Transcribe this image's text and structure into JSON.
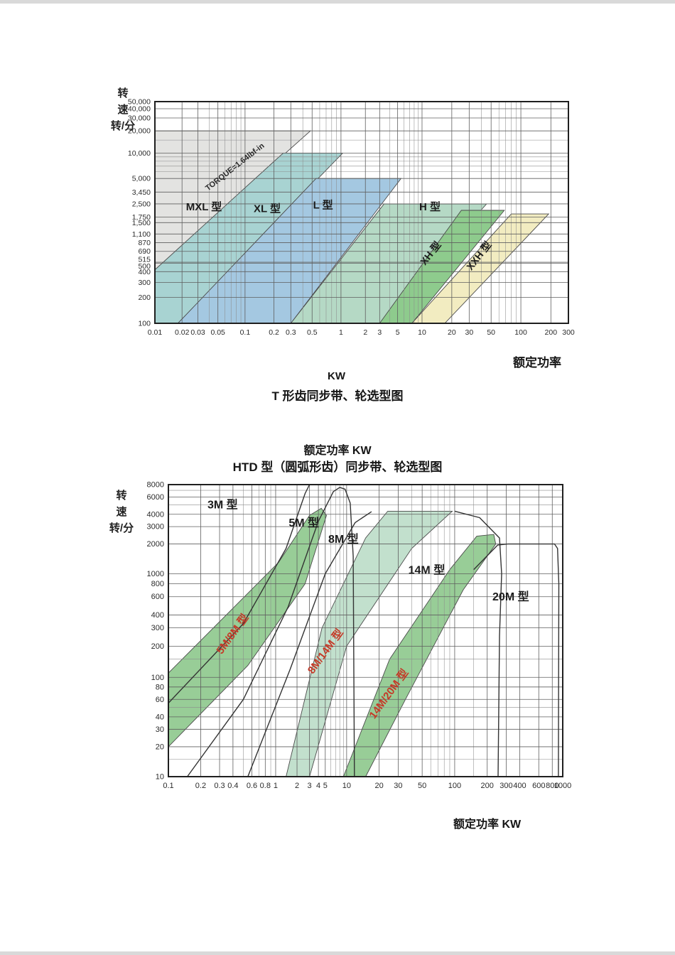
{
  "page": {
    "top_chart": {
      "y_axis_title_lines": [
        "转",
        "速",
        "转/分"
      ]
    },
    "between": {
      "x_axis_label": "额定功率",
      "x_axis_unit": "KW",
      "title": "T 形齿同步带、轮选型图"
    },
    "bottom_header": {
      "power_label": "额定功率 KW",
      "title": "HTD 型（圆弧形齿）同步带、轮选型图"
    },
    "bottom_chart": {
      "y_axis_title_lines": [
        "转",
        "速",
        "转/分"
      ],
      "x_axis_label": "额定功率 KW"
    }
  },
  "chart_data": [
    {
      "id": "t-belt-selection",
      "type": "area",
      "title": "T 形齿同步带、轮选型图",
      "xlabel": "额定功率 KW",
      "ylabel": "转速 转/分",
      "x_range": [
        0.01,
        300
      ],
      "y_range": [
        100,
        50000
      ],
      "grid": true,
      "x_ticks": [
        {
          "label": "0.01",
          "v": 0.01
        },
        {
          "label": "0.02",
          "v": 0.02
        },
        {
          "label": "0.03",
          "v": 0.03
        },
        {
          "label": "0.05",
          "v": 0.05
        },
        {
          "label": "0.1",
          "v": 0.1
        },
        {
          "label": "0.2",
          "v": 0.2
        },
        {
          "label": "0.3",
          "v": 0.3
        },
        {
          "label": "0.5",
          "v": 0.5
        },
        {
          "label": "1",
          "v": 1
        },
        {
          "label": "2",
          "v": 2
        },
        {
          "label": "3",
          "v": 3
        },
        {
          "label": "5",
          "v": 5
        },
        {
          "label": "10",
          "v": 10
        },
        {
          "label": "20",
          "v": 20
        },
        {
          "label": "30",
          "v": 30
        },
        {
          "label": "50",
          "v": 50
        },
        {
          "label": "100",
          "v": 100
        },
        {
          "label": "200",
          "v": 200
        },
        {
          "label": "300",
          "v": 300
        }
      ],
      "y_ticks": [
        {
          "label": "50,000",
          "v": 50000
        },
        {
          "label": "40,000",
          "v": 40000
        },
        {
          "label": "30,000",
          "v": 30000
        },
        {
          "label": "20,000",
          "v": 20000
        },
        {
          "label": "10,000",
          "v": 10000
        },
        {
          "label": "5,000",
          "v": 5000
        },
        {
          "label": "3,450",
          "v": 3450
        },
        {
          "label": "2,500",
          "v": 2500
        },
        {
          "label": "1,750",
          "v": 1750
        },
        {
          "label": "1,500",
          "v": 1500
        },
        {
          "label": "1,100",
          "v": 1100
        },
        {
          "label": "870",
          "v": 870
        },
        {
          "label": "690",
          "v": 690
        },
        {
          "label": "515",
          "v": 515,
          "dy": -4
        },
        {
          "label": "500",
          "v": 500,
          "dy": 4
        },
        {
          "label": "400",
          "v": 400
        },
        {
          "label": "300",
          "v": 300
        },
        {
          "label": "200",
          "v": 200
        },
        {
          "label": "100",
          "v": 100
        }
      ],
      "x_minor": [
        0.04,
        0.06,
        0.07,
        0.08,
        0.09,
        0.4,
        0.6,
        0.7,
        0.8,
        0.9,
        4,
        6,
        7,
        8,
        9,
        40,
        60,
        70,
        80,
        90
      ],
      "y_minor": [
        6000,
        7000,
        8000,
        9000,
        15000
      ],
      "x_anchors": [
        [
          0.01,
          0
        ],
        [
          0.1,
          0.218
        ],
        [
          1,
          0.45
        ],
        [
          10,
          0.646
        ],
        [
          100,
          0.885
        ],
        [
          300,
          1
        ]
      ],
      "y_anchors": [
        [
          50000,
          0
        ],
        [
          10000,
          0.232
        ],
        [
          1000,
          0.613
        ],
        [
          100,
          1
        ]
      ],
      "bands": [
        {
          "name": "MXL",
          "color": "#e3e3e1",
          "points": [
            [
              0.01,
              420
            ],
            [
              0.48,
              20000
            ],
            [
              0.01,
              20000
            ]
          ]
        },
        {
          "name": "XL",
          "color": "#a8d3d2",
          "points": [
            [
              0.01,
              420
            ],
            [
              0.25,
              10000
            ],
            [
              1.05,
              10000
            ],
            [
              0.018,
              100
            ],
            [
              0.01,
              100
            ]
          ]
        },
        {
          "name": "L",
          "color": "#a4c8e1",
          "points": [
            [
              0.018,
              100
            ],
            [
              0.55,
              5000
            ],
            [
              5.5,
              5000
            ],
            [
              0.3,
              100
            ]
          ]
        },
        {
          "name": "H",
          "color": "#b5d9c5",
          "points": [
            [
              0.3,
              100
            ],
            [
              3.4,
              2500
            ],
            [
              45,
              2500
            ],
            [
              3.0,
              100
            ]
          ]
        },
        {
          "name": "XH",
          "color": "#8ecb8d",
          "points": [
            [
              3.0,
              100
            ],
            [
              25,
              2100
            ],
            [
              68,
              2100
            ],
            [
              7.5,
              100
            ]
          ]
        },
        {
          "name": "XXH",
          "color": "#f2ecc1",
          "points": [
            [
              7.5,
              100
            ],
            [
              80,
              1900
            ],
            [
              190,
              1900
            ],
            [
              17,
              100
            ]
          ]
        }
      ],
      "outlines": [],
      "labels": [
        {
          "text": "MXL 型",
          "x": 0.035,
          "y": 2100,
          "rotate": 0,
          "size": 15,
          "color": "#1c1c1c"
        },
        {
          "text": "XL 型",
          "x": 0.17,
          "y": 2000,
          "rotate": 0,
          "size": 15,
          "color": "#1c1c1c"
        },
        {
          "text": "L 型",
          "x": 0.65,
          "y": 2200,
          "rotate": 0,
          "size": 15,
          "color": "#1c1c1c"
        },
        {
          "text": "H 型",
          "x": 12,
          "y": 2100,
          "rotate": 0,
          "size": 15,
          "color": "#1c1c1c"
        },
        {
          "text": "XH 型",
          "x": 13,
          "y": 620,
          "rotate": -52,
          "size": 14,
          "color": "#1c1c1c"
        },
        {
          "text": "XXH 型",
          "x": 40,
          "y": 580,
          "rotate": -52,
          "size": 14,
          "color": "#1c1c1c"
        },
        {
          "text": "TORQUE=1.64lbf-in",
          "x": 0.08,
          "y": 6500,
          "rotate": -38,
          "size": 11,
          "color": "#2a2a2a"
        }
      ]
    },
    {
      "id": "htd-belt-selection",
      "type": "area",
      "title": "HTD 型（圆弧形齿）同步带、轮选型图",
      "xlabel": "额定功率 KW",
      "ylabel": "转速 转/分",
      "x_range": [
        0.1,
        1000
      ],
      "y_range": [
        10,
        8000
      ],
      "grid": true,
      "x_ticks": [
        {
          "label": "0.1",
          "v": 0.1
        },
        {
          "label": "0.2",
          "v": 0.2
        },
        {
          "label": "0.3",
          "v": 0.3
        },
        {
          "label": "0.4",
          "v": 0.4
        },
        {
          "label": "0.6",
          "v": 0.6
        },
        {
          "label": "0.8",
          "v": 0.8
        },
        {
          "label": "1",
          "v": 1
        },
        {
          "label": "2",
          "v": 2
        },
        {
          "label": "3",
          "v": 3
        },
        {
          "label": "4",
          "v": 4
        },
        {
          "label": "5",
          "v": 5
        },
        {
          "label": "10",
          "v": 10
        },
        {
          "label": "20",
          "v": 20
        },
        {
          "label": "30",
          "v": 30
        },
        {
          "label": "50",
          "v": 50
        },
        {
          "label": "100",
          "v": 100
        },
        {
          "label": "200",
          "v": 200
        },
        {
          "label": "300",
          "v": 300
        },
        {
          "label": "400",
          "v": 400
        },
        {
          "label": "600",
          "v": 600
        },
        {
          "label": "800",
          "v": 800
        },
        {
          "label": "1000",
          "v": 1000
        }
      ],
      "y_ticks": [
        {
          "label": "8000",
          "v": 8000
        },
        {
          "label": "6000",
          "v": 6000
        },
        {
          "label": "4000",
          "v": 4000
        },
        {
          "label": "3000",
          "v": 3000
        },
        {
          "label": "2000",
          "v": 2000
        },
        {
          "label": "1000",
          "v": 1000
        },
        {
          "label": "800",
          "v": 800
        },
        {
          "label": "600",
          "v": 600
        },
        {
          "label": "400",
          "v": 400
        },
        {
          "label": "300",
          "v": 300
        },
        {
          "label": "200",
          "v": 200
        },
        {
          "label": "100",
          "v": 100
        },
        {
          "label": "80",
          "v": 80
        },
        {
          "label": "60",
          "v": 60
        },
        {
          "label": "40",
          "v": 40
        },
        {
          "label": "30",
          "v": 30
        },
        {
          "label": "20",
          "v": 20
        },
        {
          "label": "10",
          "v": 10
        }
      ],
      "x_minor": [
        0.5,
        0.7,
        0.9,
        6,
        7,
        8,
        9,
        40,
        60,
        70,
        80,
        90,
        150
      ],
      "y_minor": [
        5000,
        7000,
        150,
        50,
        15
      ],
      "x_anchors": [
        [
          0.1,
          0
        ],
        [
          1,
          0.272
        ],
        [
          10,
          0.452
        ],
        [
          100,
          0.726
        ],
        [
          1000,
          1
        ]
      ],
      "y_anchors": [
        [
          8000,
          0
        ],
        [
          1000,
          0.305
        ],
        [
          100,
          0.66
        ],
        [
          10,
          1
        ]
      ],
      "bands": [
        {
          "name": "5M-8M",
          "color": "#98cd97",
          "points": [
            [
              0.1,
              110
            ],
            [
              1.1,
              1300
            ],
            [
              3.0,
              3900
            ],
            [
              4.4,
              4600
            ],
            [
              5.2,
              3900
            ],
            [
              2.6,
              800
            ],
            [
              0.55,
              130
            ],
            [
              0.1,
              20
            ]
          ]
        },
        {
          "name": "8M-14M",
          "color": "#c2e0cd",
          "points": [
            [
              1.4,
              10
            ],
            [
              4.5,
              300
            ],
            [
              15,
              2300
            ],
            [
              24,
              4300
            ],
            [
              95,
              4300
            ],
            [
              40,
              1800
            ],
            [
              10,
              200
            ],
            [
              3,
              10
            ]
          ]
        },
        {
          "name": "14M-20M",
          "color": "#98cd97",
          "points": [
            [
              9,
              10
            ],
            [
              25,
              150
            ],
            [
              90,
              1100
            ],
            [
              160,
              2400
            ],
            [
              230,
              2500
            ],
            [
              240,
              2000
            ],
            [
              120,
              700
            ],
            [
              35,
              60
            ],
            [
              15,
              10
            ]
          ]
        }
      ],
      "outlines": [
        {
          "name": "3M-boundary",
          "points": [
            [
              0.1,
              55
            ],
            [
              0.5,
              330
            ],
            [
              1.4,
              1800
            ],
            [
              2.6,
              6500
            ],
            [
              3.0,
              8000
            ]
          ]
        },
        {
          "name": "5M-boundary",
          "points": [
            [
              0.15,
              10
            ],
            [
              0.5,
              60
            ],
            [
              1.5,
              480
            ],
            [
              4,
              3400
            ],
            [
              6.5,
              6800
            ],
            [
              8,
              7500
            ],
            [
              9.5,
              7200
            ],
            [
              10.8,
              5200
            ],
            [
              11.5,
              1500
            ],
            [
              11.8,
              10
            ]
          ]
        },
        {
          "name": "8M-boundary",
          "points": [
            [
              0.55,
              10
            ],
            [
              1.6,
              120
            ],
            [
              5,
              1000
            ],
            [
              12,
              3300
            ],
            [
              17,
              4250
            ]
          ]
        },
        {
          "name": "14M-boundary",
          "points": [
            [
              100,
              4300
            ],
            [
              170,
              3700
            ],
            [
              260,
              2300
            ],
            [
              272,
              1000
            ],
            [
              260,
              250
            ],
            [
              252,
              10
            ]
          ]
        },
        {
          "name": "20M-boundary",
          "points": [
            [
              150,
              1100
            ],
            [
              250,
              1950
            ],
            [
              310,
              2000
            ],
            [
              840,
              2000
            ],
            [
              895,
              1800
            ],
            [
              920,
              800
            ],
            [
              912,
              10
            ]
          ]
        }
      ],
      "labels": [
        {
          "text": "3M 型",
          "x": 0.32,
          "y": 4600,
          "rotate": 0,
          "size": 16,
          "color": "#1c1c1c"
        },
        {
          "text": "5M 型",
          "x": 2.5,
          "y": 3000,
          "rotate": 0,
          "size": 16,
          "color": "#1c1c1c"
        },
        {
          "text": "8M 型",
          "x": 9,
          "y": 2050,
          "rotate": 0,
          "size": 16,
          "color": "#1c1c1c"
        },
        {
          "text": "14M 型",
          "x": 55,
          "y": 1000,
          "rotate": 0,
          "size": 16,
          "color": "#1c1c1c"
        },
        {
          "text": "20M 型",
          "x": 330,
          "y": 550,
          "rotate": 0,
          "size": 16,
          "color": "#1c1c1c"
        },
        {
          "text": "5M/8M 型",
          "x": 0.42,
          "y": 250,
          "rotate": -54,
          "size": 15,
          "color": "#c53a28"
        },
        {
          "text": "8M/14M 型",
          "x": 5.5,
          "y": 170,
          "rotate": -54,
          "size": 15,
          "color": "#c53a28"
        },
        {
          "text": "14M/20M 型",
          "x": 26,
          "y": 65,
          "rotate": -54,
          "size": 15,
          "color": "#c53a28"
        }
      ]
    }
  ]
}
